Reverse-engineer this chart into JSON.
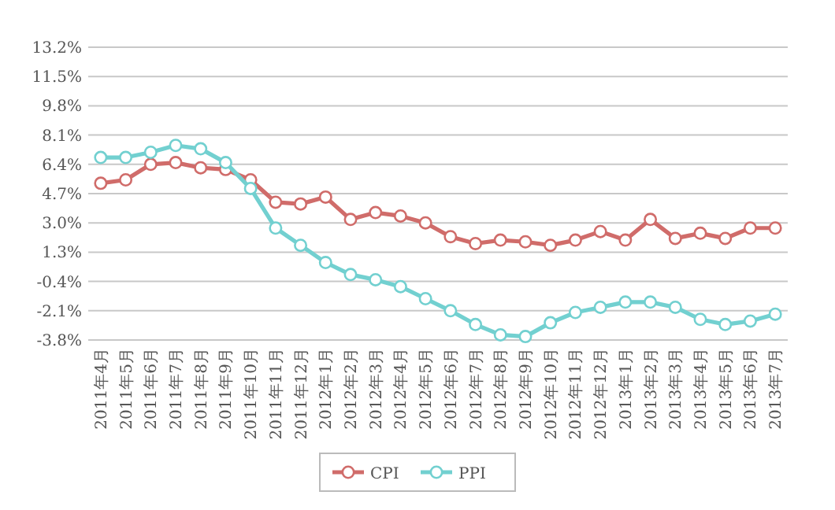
{
  "chart_data": {
    "type": "line",
    "categories": [
      "2011年4月",
      "2011年5月",
      "2011年6月",
      "2011年7月",
      "2011年8月",
      "2011年9月",
      "2011年10月",
      "2011年11月",
      "2011年12月",
      "2012年1月",
      "2012年2月",
      "2012年3月",
      "2012年4月",
      "2012年5月",
      "2012年6月",
      "2012年7月",
      "2012年8月",
      "2012年9月",
      "2012年10月",
      "2012年11月",
      "2012年12月",
      "2013年1月",
      "2013年2月",
      "2013年3月",
      "2013年4月",
      "2013年5月",
      "2013年6月",
      "2013年7月"
    ],
    "series": [
      {
        "name": "CPI",
        "color": "#d06c6a",
        "values": [
          5.3,
          5.5,
          6.4,
          6.5,
          6.2,
          6.1,
          5.5,
          4.2,
          4.1,
          4.5,
          3.2,
          3.6,
          3.4,
          3.0,
          2.2,
          1.8,
          2.0,
          1.9,
          1.7,
          2.0,
          2.5,
          2.0,
          3.2,
          2.1,
          2.4,
          2.1,
          2.7,
          2.7
        ]
      },
      {
        "name": "PPI",
        "color": "#72d0d0",
        "values": [
          6.8,
          6.8,
          7.1,
          7.5,
          7.3,
          6.5,
          5.0,
          2.7,
          1.7,
          0.7,
          0.0,
          -0.3,
          -0.7,
          -1.4,
          -2.1,
          -2.9,
          -3.5,
          -3.6,
          -2.8,
          -2.2,
          -1.9,
          -1.6,
          -1.6,
          -1.9,
          -2.6,
          -2.9,
          -2.7,
          -2.3
        ]
      }
    ],
    "ylim": [
      -3.8,
      13.2
    ],
    "yticks": [
      {
        "value": -3.8,
        "label": "-3.8%"
      },
      {
        "value": -2.1,
        "label": "-2.1%"
      },
      {
        "value": -0.4,
        "label": "-0.4%"
      },
      {
        "value": 1.3,
        "label": "1.3%"
      },
      {
        "value": 3.0,
        "label": "3.0%"
      },
      {
        "value": 4.7,
        "label": "4.7%"
      },
      {
        "value": 6.4,
        "label": "6.4%"
      },
      {
        "value": 8.1,
        "label": "8.1%"
      },
      {
        "value": 9.8,
        "label": "9.8%"
      },
      {
        "value": 11.5,
        "label": "11.5%"
      },
      {
        "value": 13.2,
        "label": "13.2%"
      }
    ],
    "grid": "y",
    "legend": "bottom",
    "marker": "circle",
    "line_style": "solid"
  }
}
